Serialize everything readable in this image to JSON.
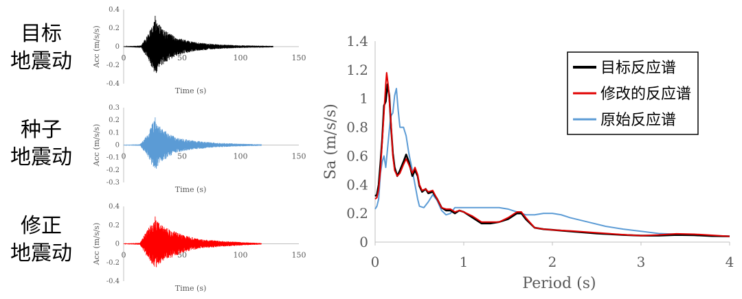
{
  "left_labels": [
    {
      "line1": "目标",
      "line2": "地震动"
    },
    {
      "line1": "种子",
      "line2": "地震动"
    },
    {
      "line1": "修正",
      "line2": "地震动"
    }
  ],
  "chart_data": [
    {
      "type": "line",
      "color": "#000000",
      "xlabel": "Time (s)",
      "ylabel": "Acc (m/s/s)",
      "xlim": [
        0,
        150
      ],
      "ylim": [
        -0.4,
        0.4
      ],
      "xticks": [
        "0",
        "50",
        "100",
        "150"
      ],
      "yticks": [
        "0.4",
        "0.2",
        "0",
        "-0.2",
        "-0.4"
      ],
      "yticks_values": [
        0.4,
        0.2,
        0,
        -0.2,
        -0.4
      ],
      "duration": 128,
      "peak": 0.33,
      "envelope": [
        [
          0,
          0.004
        ],
        [
          15,
          0.012
        ],
        [
          20,
          0.12
        ],
        [
          27,
          0.3
        ],
        [
          33,
          0.2
        ],
        [
          45,
          0.1
        ],
        [
          60,
          0.05
        ],
        [
          80,
          0.025
        ],
        [
          100,
          0.014
        ],
        [
          128,
          0.008
        ]
      ]
    },
    {
      "type": "line",
      "color": "#5b9bd5",
      "xlabel": "Time (s)",
      "ylabel": "Acc (m/s/s)",
      "xlim": [
        0,
        150
      ],
      "ylim": [
        -0.3,
        0.3
      ],
      "xticks": [
        "0",
        "50",
        "100",
        "150"
      ],
      "yticks": [
        "0.3",
        "0.2",
        "0.1",
        "0",
        "-0.1",
        "-0.2",
        "-0.3"
      ],
      "yticks_values": [
        0.3,
        0.2,
        0.1,
        0,
        -0.1,
        -0.2,
        -0.3
      ],
      "duration": 118,
      "peak": 0.22,
      "envelope": [
        [
          0,
          0.002
        ],
        [
          14,
          0.006
        ],
        [
          20,
          0.08
        ],
        [
          26,
          0.2
        ],
        [
          33,
          0.13
        ],
        [
          45,
          0.06
        ],
        [
          60,
          0.035
        ],
        [
          80,
          0.018
        ],
        [
          100,
          0.01
        ],
        [
          118,
          0.006
        ]
      ]
    },
    {
      "type": "line",
      "color": "#ff0000",
      "xlabel": "Time (s)",
      "ylabel": "Acc (m/s/s)",
      "xlim": [
        0,
        150
      ],
      "ylim": [
        -0.4,
        0.4
      ],
      "xticks": [
        "0",
        "50",
        "100",
        "150"
      ],
      "yticks": [
        "0.4",
        "0.2",
        "0",
        "-0.2",
        "-0.4"
      ],
      "yticks_values": [
        0.4,
        0.2,
        0,
        -0.2,
        -0.4
      ],
      "duration": 118,
      "peak": 0.29,
      "envelope": [
        [
          0,
          0.003
        ],
        [
          14,
          0.01
        ],
        [
          20,
          0.15
        ],
        [
          27,
          0.26
        ],
        [
          35,
          0.18
        ],
        [
          50,
          0.1
        ],
        [
          65,
          0.05
        ],
        [
          85,
          0.03
        ],
        [
          105,
          0.015
        ],
        [
          118,
          0.008
        ]
      ]
    },
    {
      "type": "line",
      "xlabel": "Period (s)",
      "ylabel": "Sa (m/s/s)",
      "xlim": [
        0,
        4
      ],
      "ylim": [
        0,
        1.4
      ],
      "xticks": [
        "0",
        "1",
        "2",
        "3",
        "4"
      ],
      "xticks_values": [
        0,
        1,
        2,
        3,
        4
      ],
      "yticks": [
        "0",
        "0.2",
        "0.4",
        "0.6",
        "0.8",
        "1",
        "1.2",
        "1.4"
      ],
      "yticks_values": [
        0,
        0.2,
        0.4,
        0.6,
        0.8,
        1,
        1.2,
        1.4
      ],
      "legend": "top-right",
      "series": [
        {
          "name": "目标反应谱",
          "color": "#000000",
          "points": [
            [
              0,
              0.32
            ],
            [
              0.02,
              0.33
            ],
            [
              0.04,
              0.4
            ],
            [
              0.06,
              0.55
            ],
            [
              0.08,
              0.72
            ],
            [
              0.1,
              0.95
            ],
            [
              0.12,
              0.98
            ],
            [
              0.14,
              1.1
            ],
            [
              0.16,
              1.02
            ],
            [
              0.18,
              0.8
            ],
            [
              0.2,
              0.62
            ],
            [
              0.22,
              0.52
            ],
            [
              0.25,
              0.46
            ],
            [
              0.28,
              0.5
            ],
            [
              0.32,
              0.56
            ],
            [
              0.35,
              0.61
            ],
            [
              0.38,
              0.56
            ],
            [
              0.42,
              0.46
            ],
            [
              0.45,
              0.5
            ],
            [
              0.48,
              0.46
            ],
            [
              0.5,
              0.39
            ],
            [
              0.53,
              0.35
            ],
            [
              0.57,
              0.37
            ],
            [
              0.6,
              0.34
            ],
            [
              0.65,
              0.35
            ],
            [
              0.7,
              0.3
            ],
            [
              0.75,
              0.24
            ],
            [
              0.8,
              0.22
            ],
            [
              0.85,
              0.22
            ],
            [
              0.9,
              0.2
            ],
            [
              0.95,
              0.22
            ],
            [
              1.0,
              0.21
            ],
            [
              1.1,
              0.17
            ],
            [
              1.2,
              0.13
            ],
            [
              1.3,
              0.13
            ],
            [
              1.4,
              0.14
            ],
            [
              1.5,
              0.16
            ],
            [
              1.6,
              0.2
            ],
            [
              1.65,
              0.2
            ],
            [
              1.7,
              0.16
            ],
            [
              1.8,
              0.1
            ],
            [
              1.9,
              0.09
            ],
            [
              2.0,
              0.085
            ],
            [
              2.2,
              0.075
            ],
            [
              2.5,
              0.06
            ],
            [
              2.8,
              0.05
            ],
            [
              3.0,
              0.045
            ],
            [
              3.2,
              0.045
            ],
            [
              3.4,
              0.05
            ],
            [
              3.6,
              0.048
            ],
            [
              3.8,
              0.042
            ],
            [
              4.0,
              0.04
            ]
          ]
        },
        {
          "name": "修改的反应谱",
          "color": "#e00000",
          "points": [
            [
              0,
              0.3
            ],
            [
              0.02,
              0.31
            ],
            [
              0.04,
              0.37
            ],
            [
              0.06,
              0.5
            ],
            [
              0.08,
              0.7
            ],
            [
              0.1,
              0.9
            ],
            [
              0.12,
              1.1
            ],
            [
              0.13,
              1.18
            ],
            [
              0.15,
              1.08
            ],
            [
              0.18,
              0.82
            ],
            [
              0.2,
              0.6
            ],
            [
              0.22,
              0.5
            ],
            [
              0.25,
              0.46
            ],
            [
              0.28,
              0.48
            ],
            [
              0.32,
              0.54
            ],
            [
              0.35,
              0.58
            ],
            [
              0.38,
              0.54
            ],
            [
              0.42,
              0.48
            ],
            [
              0.45,
              0.52
            ],
            [
              0.48,
              0.47
            ],
            [
              0.5,
              0.4
            ],
            [
              0.53,
              0.36
            ],
            [
              0.57,
              0.37
            ],
            [
              0.6,
              0.35
            ],
            [
              0.65,
              0.36
            ],
            [
              0.7,
              0.3
            ],
            [
              0.75,
              0.24
            ],
            [
              0.8,
              0.23
            ],
            [
              0.85,
              0.23
            ],
            [
              0.9,
              0.21
            ],
            [
              0.95,
              0.22
            ],
            [
              1.0,
              0.21
            ],
            [
              1.1,
              0.18
            ],
            [
              1.2,
              0.14
            ],
            [
              1.3,
              0.14
            ],
            [
              1.4,
              0.14
            ],
            [
              1.5,
              0.17
            ],
            [
              1.6,
              0.21
            ],
            [
              1.65,
              0.21
            ],
            [
              1.7,
              0.17
            ],
            [
              1.8,
              0.1
            ],
            [
              1.9,
              0.09
            ],
            [
              2.0,
              0.085
            ],
            [
              2.2,
              0.078
            ],
            [
              2.5,
              0.065
            ],
            [
              2.8,
              0.052
            ],
            [
              3.0,
              0.045
            ],
            [
              3.2,
              0.05
            ],
            [
              3.4,
              0.058
            ],
            [
              3.6,
              0.055
            ],
            [
              3.8,
              0.048
            ],
            [
              4.0,
              0.04
            ]
          ]
        },
        {
          "name": "原始反应谱",
          "color": "#5b9bd5",
          "points": [
            [
              0,
              0.23
            ],
            [
              0.02,
              0.25
            ],
            [
              0.04,
              0.3
            ],
            [
              0.06,
              0.48
            ],
            [
              0.08,
              0.56
            ],
            [
              0.1,
              0.6
            ],
            [
              0.12,
              0.52
            ],
            [
              0.14,
              0.65
            ],
            [
              0.16,
              0.78
            ],
            [
              0.18,
              0.88
            ],
            [
              0.2,
              0.9
            ],
            [
              0.22,
              1.02
            ],
            [
              0.24,
              1.07
            ],
            [
              0.26,
              0.92
            ],
            [
              0.28,
              0.8
            ],
            [
              0.32,
              0.8
            ],
            [
              0.35,
              0.74
            ],
            [
              0.38,
              0.62
            ],
            [
              0.42,
              0.5
            ],
            [
              0.45,
              0.4
            ],
            [
              0.48,
              0.3
            ],
            [
              0.5,
              0.25
            ],
            [
              0.55,
              0.24
            ],
            [
              0.6,
              0.28
            ],
            [
              0.65,
              0.33
            ],
            [
              0.7,
              0.29
            ],
            [
              0.75,
              0.22
            ],
            [
              0.8,
              0.19
            ],
            [
              0.85,
              0.2
            ],
            [
              0.9,
              0.24
            ],
            [
              0.95,
              0.24
            ],
            [
              1.0,
              0.24
            ],
            [
              1.1,
              0.24
            ],
            [
              1.2,
              0.24
            ],
            [
              1.3,
              0.24
            ],
            [
              1.4,
              0.24
            ],
            [
              1.5,
              0.23
            ],
            [
              1.6,
              0.21
            ],
            [
              1.7,
              0.19
            ],
            [
              1.8,
              0.19
            ],
            [
              1.9,
              0.2
            ],
            [
              2.0,
              0.2
            ],
            [
              2.1,
              0.19
            ],
            [
              2.2,
              0.17
            ],
            [
              2.4,
              0.14
            ],
            [
              2.6,
              0.11
            ],
            [
              2.8,
              0.09
            ],
            [
              3.0,
              0.075
            ],
            [
              3.2,
              0.06
            ],
            [
              3.4,
              0.055
            ],
            [
              3.6,
              0.05
            ],
            [
              3.8,
              0.045
            ],
            [
              4.0,
              0.042
            ]
          ]
        }
      ]
    }
  ]
}
